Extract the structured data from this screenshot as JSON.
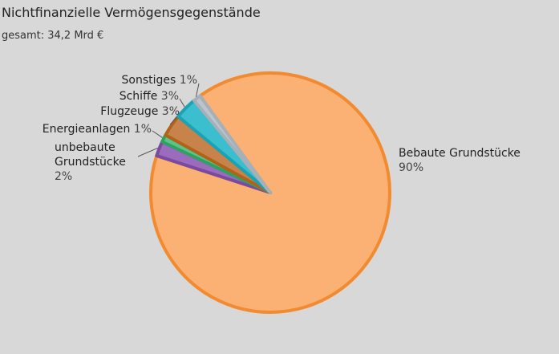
{
  "chart_data": {
    "type": "pie",
    "title": "Nichtfinanzielle Vermögensgegenstände",
    "subtitle": "gesamt: 34,2 Mrd €",
    "categories": [
      "Bebaute Grundstücke",
      "unbebaute Grundstücke",
      "Energieanlagen",
      "Flugzeuge",
      "Schiffe",
      "Sonstiges"
    ],
    "values": [
      90,
      2,
      1,
      3,
      3,
      1
    ],
    "value_labels": [
      "90%",
      "2%",
      "1%",
      "3%",
      "3%",
      "1%"
    ],
    "colors": [
      "#fbb174",
      "#9b6bbd",
      "#5cc48a",
      "#c8834b",
      "#3bbfcf",
      "#bcc5cc"
    ],
    "edge_colors": [
      "#f28b30",
      "#7a4a9e",
      "#2ea35f",
      "#b3621a",
      "#1aa3b5",
      "#a6b0b8"
    ]
  }
}
